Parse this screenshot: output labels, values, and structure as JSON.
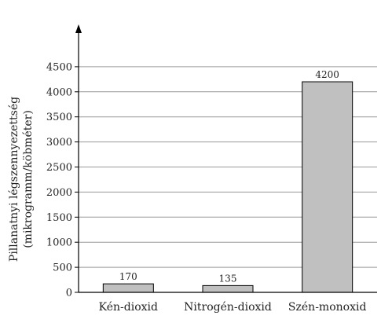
{
  "chart_data": {
    "type": "bar",
    "title": "",
    "xlabel": "",
    "ylabel": [
      "Pillanatnyi légszennyezettség",
      "(mikrogramm/köbméter)"
    ],
    "categories": [
      "Kén-dioxid",
      "Nitrogén-dioxid",
      "Szén-monoxid"
    ],
    "values": [
      170,
      135,
      4200
    ],
    "data_labels": [
      "170",
      "135",
      "4200"
    ],
    "ylim": [
      0,
      5000
    ],
    "yticks": [
      0,
      500,
      1000,
      1500,
      2000,
      2500,
      3000,
      3500,
      4000,
      4500
    ],
    "grid": "horizontal",
    "legend": "none",
    "colors": {
      "bar": "#c0c0c0",
      "bar_stroke": "#000000",
      "grid": "#999999",
      "axis": "#000000"
    }
  }
}
